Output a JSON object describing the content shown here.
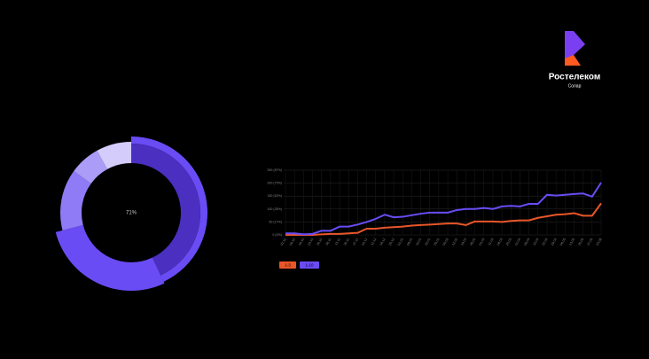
{
  "logo": {
    "name": "Ростелеком",
    "sub": "Солар"
  },
  "chart_data": [
    {
      "type": "pie",
      "center_label": "71%",
      "values": [
        43,
        28,
        14,
        7,
        8
      ],
      "colors": [
        "#4a2fc0",
        "#6a4cf5",
        "#8f7bf5",
        "#ab9cf7",
        "#d4ccfb"
      ]
    },
    {
      "type": "line",
      "categories": [
        "02.10",
        "09.10",
        "16.10",
        "23.10",
        "30.10",
        "06.11",
        "13.11",
        "20.11",
        "27.11",
        "04.12",
        "11.12",
        "18.12",
        "25.12",
        "01.01",
        "08.01",
        "15.01",
        "22.01",
        "29.01",
        "05.02",
        "12.02",
        "19.02",
        "26.02",
        "04.03",
        "11.03",
        "18.03",
        "25.03",
        "01.04",
        "08.04",
        "15.04",
        "22.04",
        "29.04",
        "06.05",
        "13.05",
        "20.05",
        "27.05",
        "03.06"
      ],
      "series": [
        {
          "name": "1-3",
          "color": "#e8562a",
          "values": [
            0,
            0,
            0,
            0,
            2,
            4,
            4,
            6,
            8,
            24,
            24,
            28,
            30,
            32,
            36,
            38,
            40,
            42,
            44,
            44,
            38,
            52,
            52,
            52,
            50,
            54,
            56,
            56,
            66,
            72,
            78,
            80,
            84,
            74,
            74,
            122
          ]
        },
        {
          "name": "1-10",
          "color": "#6a4cf5",
          "values": [
            6,
            6,
            2,
            4,
            16,
            16,
            32,
            32,
            40,
            50,
            62,
            78,
            68,
            70,
            76,
            82,
            86,
            86,
            86,
            96,
            100,
            100,
            104,
            100,
            110,
            112,
            110,
            120,
            120,
            155,
            152,
            155,
            158,
            160,
            148,
            202
          ]
        }
      ],
      "ylim": [
        0,
        250
      ],
      "yticks": [
        {
          "value": 0,
          "label": "0 (0%)"
        },
        {
          "value": 50,
          "label": "50 (17%)"
        },
        {
          "value": 100,
          "label": "100 (35%)"
        },
        {
          "value": 150,
          "label": "150 (52%)"
        },
        {
          "value": 200,
          "label": "200 (70%)"
        },
        {
          "value": 250,
          "label": "250 (87%)"
        }
      ],
      "grid": true
    }
  ]
}
